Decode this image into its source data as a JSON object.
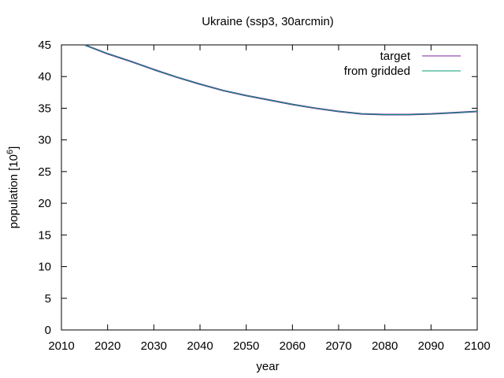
{
  "chart_data": {
    "type": "line",
    "title": "Ukraine (ssp3, 30arcmin)",
    "xlabel": "year",
    "ylabel": "population [10",
    "ylabel_superscript": "6",
    "ylabel_suffix": "]",
    "xlim": [
      2010,
      2100
    ],
    "ylim": [
      0,
      45
    ],
    "xticks": [
      2010,
      2020,
      2030,
      2040,
      2050,
      2060,
      2070,
      2080,
      2090,
      2100
    ],
    "yticks": [
      0,
      5,
      10,
      15,
      20,
      25,
      30,
      35,
      40,
      45
    ],
    "grid": false,
    "legend_position": "top-right",
    "series": [
      {
        "name": "target",
        "color": "#7b1fa2",
        "x": [
          2015,
          2020,
          2025,
          2030,
          2035,
          2040,
          2045,
          2050,
          2055,
          2060,
          2065,
          2070,
          2075,
          2080,
          2085,
          2090,
          2095,
          2100
        ],
        "y": [
          45.0,
          43.6,
          42.4,
          41.1,
          39.9,
          38.8,
          37.8,
          37.0,
          36.3,
          35.6,
          35.0,
          34.5,
          34.1,
          34.0,
          34.0,
          34.1,
          34.3,
          34.5
        ]
      },
      {
        "name": "from gridded",
        "color": "#009e73",
        "x": [
          2015,
          2020,
          2025,
          2030,
          2035,
          2040,
          2045,
          2050,
          2055,
          2060,
          2065,
          2070,
          2075,
          2080,
          2085,
          2090,
          2095,
          2100
        ],
        "y": [
          45.0,
          43.6,
          42.4,
          41.1,
          39.9,
          38.8,
          37.8,
          37.0,
          36.3,
          35.6,
          35.0,
          34.5,
          34.1,
          34.0,
          34.0,
          34.1,
          34.3,
          34.5
        ]
      }
    ]
  }
}
